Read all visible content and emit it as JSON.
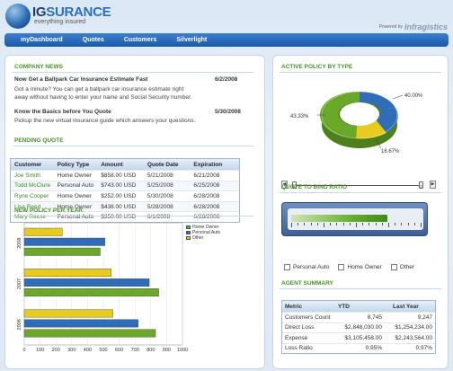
{
  "header": {
    "logo_ig": "IG",
    "logo_rest": "SURANCE",
    "tagline": "everything insured",
    "powered_by": "Powered by",
    "powered_brand": "Infragistics"
  },
  "nav": {
    "items": [
      "myDashboard",
      "Quotes",
      "Customers",
      "Silverlight"
    ]
  },
  "company_news": {
    "title": "COMPANY NEWS",
    "items": [
      {
        "title": "Now Get a Ballpark Car Insurance Estimate Fast",
        "date": "6/2/2008",
        "line1": "Got a minute? You can get a ballpark car insurance estimate right",
        "line2": "away without having to enter your name and Social Security number."
      },
      {
        "title": "Know the Basics before You Quote",
        "date": "5/30/2008",
        "line1": "Pickup the new virtual insurance guide which answers your questions."
      }
    ]
  },
  "pending_quote": {
    "title": "PENDING QUOTE",
    "columns": [
      "Customer",
      "Policy Type",
      "Amount",
      "Quote Date",
      "Expiration"
    ],
    "rows": [
      [
        "Joe Smith",
        "Home Owner",
        "$858.00 USD",
        "5/21/2008",
        "6/21/2008"
      ],
      [
        "Todd McClure",
        "Personal Auto",
        "$743.00 USD",
        "5/25/2008",
        "6/25/2008"
      ],
      [
        "Ryne Cooper",
        "Home Owner",
        "$252.00 USD",
        "5/30/2008",
        "6/28/2008"
      ],
      [
        "Lisa Reed",
        "Home Owner",
        "$438.00 USD",
        "5/28/2008",
        "6/28/2008"
      ],
      [
        "Mary Reese",
        "Personal Auto",
        "$350.00 USD",
        "6/1/2008",
        "6/28/2008"
      ]
    ]
  },
  "new_policy": {
    "title": "NEW POLICY PER YEAR",
    "legend": [
      "Home Owner",
      "Personal Auto",
      "Other"
    ]
  },
  "active_policy": {
    "title": "ACTIVE POLICY BY TYPE",
    "labels": [
      "40.00%",
      "43.33%",
      "16.67%"
    ]
  },
  "quote_ratio": {
    "title": "QUOTE TO BIND RATIO",
    "checkboxes": [
      "Personal Auto",
      "Home Owner",
      "Other"
    ]
  },
  "agent_summary": {
    "title": "AGENT SUMMARY",
    "columns": [
      "Metric",
      "YTD",
      "Last Year"
    ],
    "rows": [
      [
        "Customers Count",
        "8,745",
        "9,247"
      ],
      [
        "Direct Loss",
        "$2,848,030.00",
        "$1,254,234.00"
      ],
      [
        "Expense",
        "$3,105,458.00",
        "$2,243,564.00"
      ],
      [
        "Loss Ratio",
        "0.95%",
        "0.97%"
      ]
    ]
  },
  "colors": {
    "home_owner": "#6aa829",
    "personal_auto": "#2f6db8",
    "other": "#e8cb1e",
    "section_title": "#4a8f2a"
  },
  "chart_data": [
    {
      "type": "bar",
      "orientation": "horizontal",
      "title": "NEW POLICY PER YEAR",
      "categories": [
        "2008",
        "2007",
        "2006"
      ],
      "series": [
        {
          "name": "Home Owner",
          "values": [
            480,
            850,
            830
          ]
        },
        {
          "name": "Personal Auto",
          "values": [
            510,
            790,
            720
          ]
        },
        {
          "name": "Other",
          "values": [
            240,
            550,
            560
          ]
        }
      ],
      "xlim": [
        0,
        1000
      ],
      "xticks": [
        0,
        100,
        200,
        300,
        400,
        500,
        600,
        700,
        800,
        900,
        1000
      ],
      "legend_position": "top-right",
      "grid": true
    },
    {
      "type": "pie",
      "title": "ACTIVE POLICY BY TYPE",
      "style": "3d-doughnut",
      "slices": [
        {
          "name": "Personal Auto",
          "value": 40.0
        },
        {
          "name": "Home Owner",
          "value": 43.33
        },
        {
          "name": "Other",
          "value": 16.67
        }
      ]
    },
    {
      "type": "bar",
      "title": "QUOTE TO BIND RATIO",
      "style": "linear-gauge",
      "value": 0.74,
      "range": [
        0,
        1
      ]
    }
  ]
}
